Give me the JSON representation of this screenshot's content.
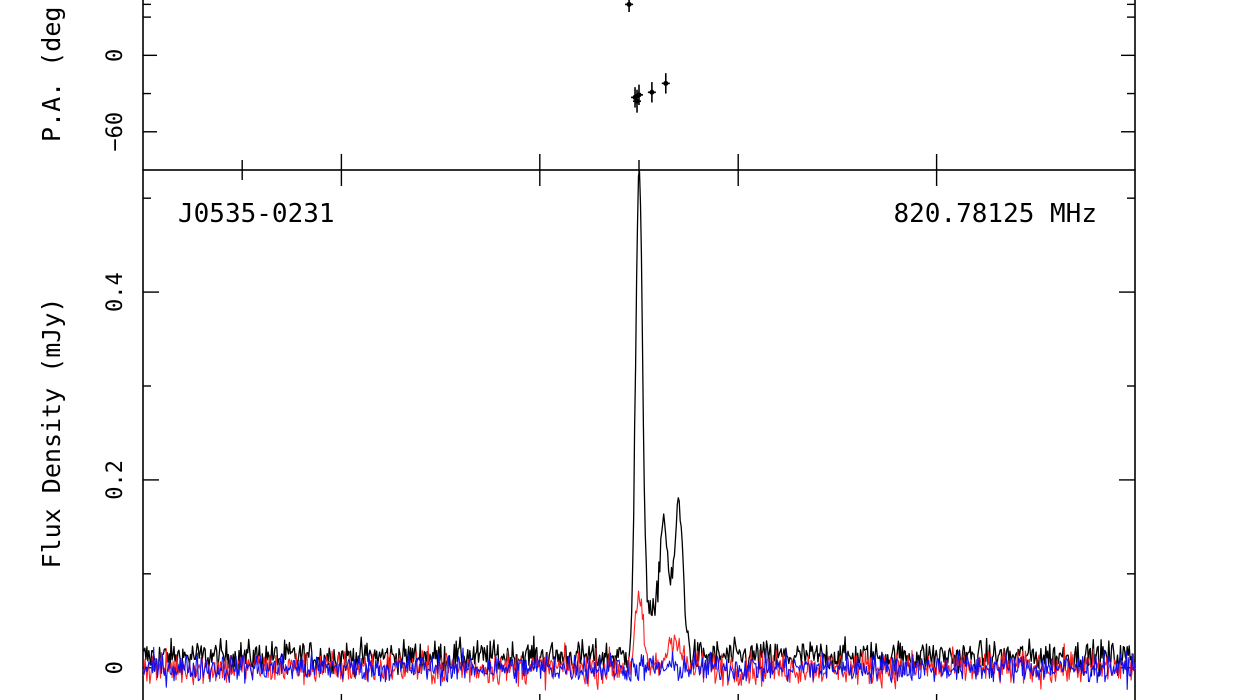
{
  "chart_data": [
    {
      "type": "scatter",
      "panel": "position-angle",
      "ylabel": "P.A. (deg",
      "ylim": [
        -90,
        45
      ],
      "yticks": [
        -60,
        0
      ],
      "pa_points": [
        {
          "x": 0.49,
          "y": 40,
          "err": 6
        },
        {
          "x": 0.496,
          "y": -33,
          "err": 8
        },
        {
          "x": 0.498,
          "y": -36,
          "err": 9
        },
        {
          "x": 0.5,
          "y": -31,
          "err": 8
        },
        {
          "x": 0.513,
          "y": -29,
          "err": 8
        },
        {
          "x": 0.527,
          "y": -22,
          "err": 8
        }
      ]
    },
    {
      "type": "line",
      "panel": "profile",
      "source_label": "J0535-0231",
      "frequency_label": "820.78125 MHz",
      "ylabel": "Flux Density (mJy)",
      "ylim": [
        -0.045,
        0.53
      ],
      "yticks": [
        0,
        0.2,
        0.4
      ],
      "series": [
        {
          "color": "#000000",
          "noise": 0.012,
          "baseline": 0.012,
          "components": [
            {
              "center": 0.5,
              "width": 0.0035,
              "amplitude": 0.5
            },
            {
              "center": 0.51,
              "width": 0.006,
              "amplitude": 0.045
            },
            {
              "center": 0.525,
              "width": 0.0045,
              "amplitude": 0.145
            },
            {
              "center": 0.54,
              "width": 0.0045,
              "amplitude": 0.16
            }
          ]
        },
        {
          "color": "#ff2020",
          "noise": 0.013,
          "baseline": 0.0,
          "components": [
            {
              "center": 0.5,
              "width": 0.004,
              "amplitude": 0.07
            },
            {
              "center": 0.535,
              "width": 0.006,
              "amplitude": 0.035
            }
          ]
        },
        {
          "color": "#1010ee",
          "noise": 0.011,
          "baseline": 0.0,
          "components": []
        }
      ]
    }
  ]
}
